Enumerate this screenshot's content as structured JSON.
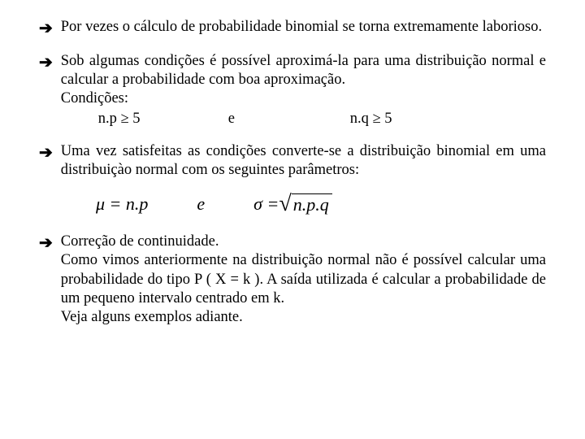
{
  "bullets": {
    "b1": {
      "text": "Por vezes o cálculo de probabilidade binomial se torna extremamente laborioso."
    },
    "b2": {
      "line1": "Sob algumas condições é possível aproximá-la para uma distribuição normal e calcular a probabilidade com boa aproximação.",
      "cond_label": "Condições:",
      "cond_a": "n.p ≥ 5",
      "cond_mid": "e",
      "cond_b": "n.q ≥ 5"
    },
    "b3": {
      "text": "Uma vez satisfeitas as condições converte-se a distribuição binomial em uma distribuiçào normal com os seguintes parâmetros:"
    },
    "formula": {
      "mu": "μ = n.p",
      "mid": "e",
      "sigma_lhs": "σ = ",
      "sigma_rhs": "n.p.q"
    },
    "b4": {
      "title": "Correção de continuidade.",
      "line": "Como vimos anteriormente na distribuição normal não é possível calcular uma probabilidade do tipo P ( X = k ). A saída utilizada é calcular a probabilidade de um pequeno intervalo centrado em k.",
      "line2": "Veja alguns exemplos adiante."
    }
  },
  "glyphs": {
    "arrow": "➔"
  }
}
